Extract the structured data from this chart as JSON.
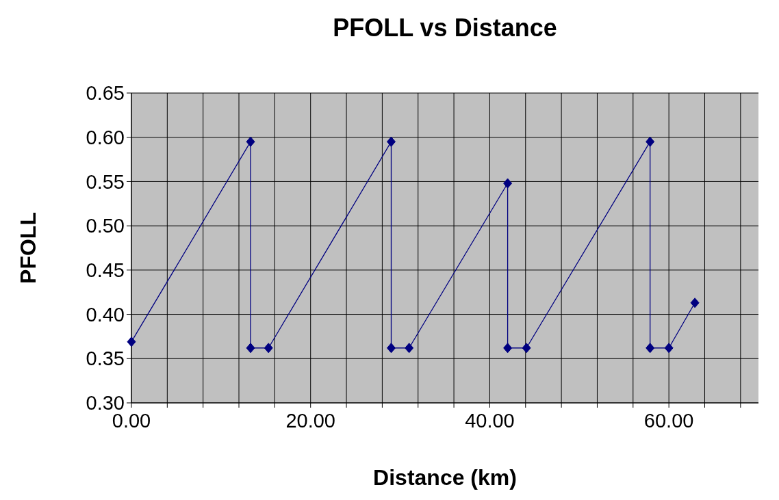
{
  "chart_data": {
    "type": "line",
    "title": "PFOLL vs Distance",
    "xlabel": "Distance (km)",
    "ylabel": "PFOLL",
    "x": [
      0,
      13.3,
      13.3,
      15.3,
      29.0,
      29.0,
      31.0,
      42.0,
      42.0,
      44.1,
      57.9,
      57.9,
      60.0,
      62.9
    ],
    "series": [
      {
        "color": "#000080",
        "values": [
          0.369,
          0.595,
          0.362,
          0.362,
          0.595,
          0.362,
          0.362,
          0.548,
          0.362,
          0.362,
          0.595,
          0.362,
          0.362,
          0.413
        ]
      }
    ],
    "xlim": [
      0,
      70
    ],
    "xticks": [
      {
        "value": 0,
        "label": "0.00"
      },
      {
        "value": 4,
        "label": null
      },
      {
        "value": 8,
        "label": null
      },
      {
        "value": 12,
        "label": null
      },
      {
        "value": 16,
        "label": null
      },
      {
        "value": 20,
        "label": "20.00"
      },
      {
        "value": 24,
        "label": null
      },
      {
        "value": 28,
        "label": null
      },
      {
        "value": 32,
        "label": null
      },
      {
        "value": 36,
        "label": null
      },
      {
        "value": 40,
        "label": "40.00"
      },
      {
        "value": 44,
        "label": null
      },
      {
        "value": 48,
        "label": null
      },
      {
        "value": 52,
        "label": null
      },
      {
        "value": 56,
        "label": null
      },
      {
        "value": 60,
        "label": "60.00"
      },
      {
        "value": 64,
        "label": null
      },
      {
        "value": 68,
        "label": null
      }
    ],
    "ylim": [
      0.3,
      0.65
    ],
    "yticks": [
      {
        "value": 0.3,
        "label": "0.30"
      },
      {
        "value": 0.35,
        "label": "0.35"
      },
      {
        "value": 0.4,
        "label": "0.40"
      },
      {
        "value": 0.45,
        "label": "0.45"
      },
      {
        "value": 0.5,
        "label": "0.50"
      },
      {
        "value": 0.55,
        "label": "0.55"
      },
      {
        "value": 0.6,
        "label": "0.60"
      },
      {
        "value": 0.65,
        "label": "0.65"
      }
    ],
    "grid": true,
    "marker": "diamond",
    "line_style": "solid"
  }
}
